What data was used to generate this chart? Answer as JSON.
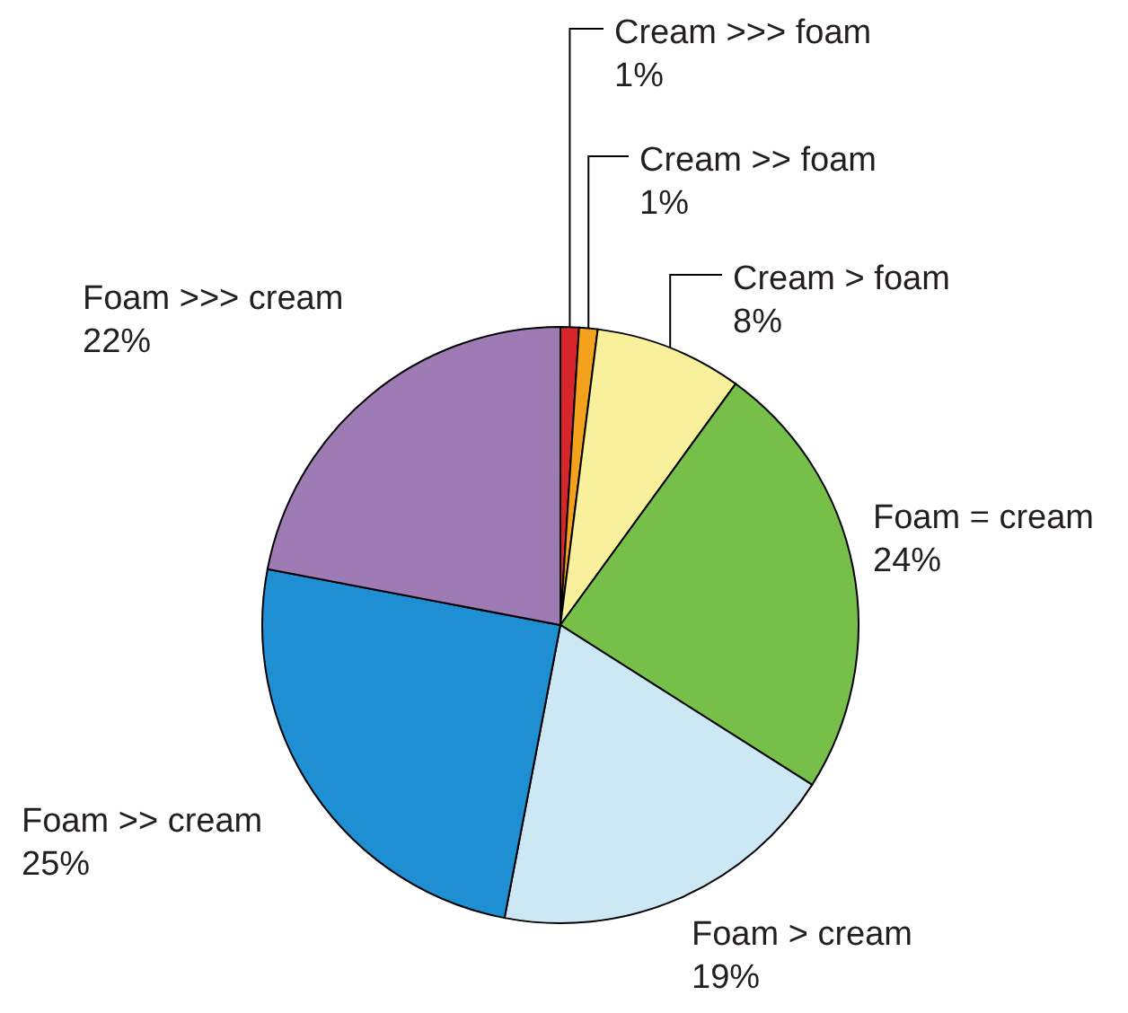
{
  "chart_data": {
    "type": "pie",
    "categories": [
      "Cream >>> foam",
      "Cream >> foam",
      "Cream > foam",
      "Foam = cream",
      "Foam > cream",
      "Foam >> cream",
      "Foam >>> cream"
    ],
    "values": [
      1,
      1,
      8,
      24,
      19,
      25,
      22
    ],
    "colors": [
      "#d7262b",
      "#f4a21e",
      "#f8f09a",
      "#76c04a",
      "#cce8f4",
      "#1e8fd2",
      "#9e7bb5"
    ],
    "value_labels": [
      "1%",
      "1%",
      "8%",
      "24%",
      "19%",
      "25%",
      "22%"
    ]
  }
}
